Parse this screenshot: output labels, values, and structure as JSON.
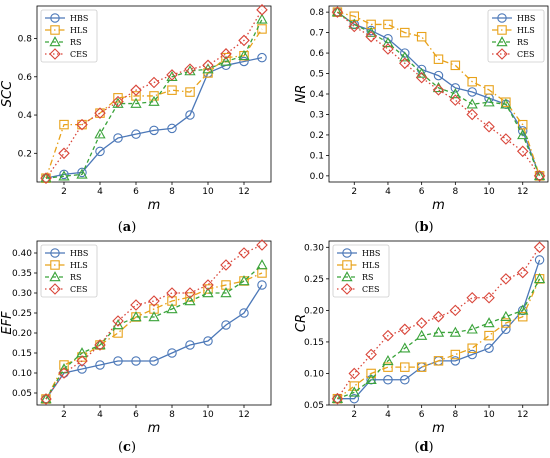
{
  "series_styles": [
    {
      "name": "HBS",
      "color": "#4c78b8",
      "marker": "circle",
      "dash": ""
    },
    {
      "name": "HLS",
      "color": "#e8a21a",
      "marker": "square",
      "dash": "6,3,1.5,3"
    },
    {
      "name": "RS",
      "color": "#3aa33a",
      "marker": "triangle",
      "dash": "4,3"
    },
    {
      "name": "CES",
      "color": "#d9463a",
      "marker": "diamond",
      "dash": "1.5,2.5"
    }
  ],
  "chart_data": [
    {
      "type": "line",
      "panel_label": "a",
      "xlabel": "m",
      "ylabel": "SCC",
      "x": [
        1,
        2,
        3,
        4,
        5,
        6,
        7,
        8,
        9,
        10,
        11,
        12,
        13
      ],
      "xlim": [
        0.5,
        13.5
      ],
      "ylim": [
        0.05,
        0.97
      ],
      "xticks": [
        2,
        4,
        6,
        8,
        10,
        12
      ],
      "yticks": [
        0.2,
        0.4,
        0.6,
        0.8
      ],
      "ytick_labels": [
        "0.2",
        "0.4",
        "0.6",
        "0.8"
      ],
      "legend": "top-left",
      "series": [
        {
          "name": "HBS",
          "values": [
            0.07,
            0.09,
            0.1,
            0.21,
            0.28,
            0.3,
            0.32,
            0.33,
            0.4,
            0.62,
            0.66,
            0.68,
            0.7
          ]
        },
        {
          "name": "HLS",
          "values": [
            0.07,
            0.35,
            0.35,
            0.41,
            0.49,
            0.5,
            0.5,
            0.53,
            0.52,
            0.62,
            0.7,
            0.71,
            0.85
          ]
        },
        {
          "name": "RS",
          "values": [
            0.07,
            0.08,
            0.09,
            0.3,
            0.46,
            0.46,
            0.47,
            0.6,
            0.63,
            0.64,
            0.68,
            0.71,
            0.9
          ]
        },
        {
          "name": "CES",
          "values": [
            0.07,
            0.2,
            0.35,
            0.41,
            0.47,
            0.53,
            0.57,
            0.61,
            0.64,
            0.66,
            0.72,
            0.79,
            0.95
          ]
        }
      ]
    },
    {
      "type": "line",
      "panel_label": "b",
      "xlabel": "m",
      "ylabel": "NR",
      "x": [
        1,
        2,
        3,
        4,
        5,
        6,
        7,
        8,
        9,
        10,
        11,
        12,
        13
      ],
      "xlim": [
        0.5,
        13.5
      ],
      "ylim": [
        -0.03,
        0.83
      ],
      "xticks": [
        2,
        4,
        6,
        8,
        10,
        12
      ],
      "yticks": [
        0.0,
        0.1,
        0.2,
        0.3,
        0.4,
        0.5,
        0.6,
        0.7,
        0.8
      ],
      "ytick_labels": [
        "0.0",
        "0.1",
        "0.2",
        "0.3",
        "0.4",
        "0.5",
        "0.6",
        "0.7",
        "0.8"
      ],
      "legend": "top-right",
      "series": [
        {
          "name": "HBS",
          "values": [
            0.8,
            0.74,
            0.71,
            0.67,
            0.6,
            0.52,
            0.49,
            0.43,
            0.41,
            0.38,
            0.35,
            0.22,
            0.0
          ]
        },
        {
          "name": "HLS",
          "values": [
            0.8,
            0.78,
            0.74,
            0.74,
            0.7,
            0.68,
            0.57,
            0.54,
            0.46,
            0.42,
            0.36,
            0.25,
            0.0
          ]
        },
        {
          "name": "RS",
          "values": [
            0.8,
            0.74,
            0.7,
            0.65,
            0.58,
            0.5,
            0.43,
            0.4,
            0.35,
            0.36,
            0.35,
            0.2,
            0.0
          ]
        },
        {
          "name": "CES",
          "values": [
            0.8,
            0.73,
            0.68,
            0.62,
            0.55,
            0.48,
            0.42,
            0.37,
            0.3,
            0.24,
            0.18,
            0.12,
            0.0
          ]
        }
      ]
    },
    {
      "type": "line",
      "panel_label": "c",
      "xlabel": "m",
      "ylabel": "EFF",
      "x": [
        1,
        2,
        3,
        4,
        5,
        6,
        7,
        8,
        9,
        10,
        11,
        12,
        13
      ],
      "xlim": [
        0.5,
        13.5
      ],
      "ylim": [
        0.02,
        0.43
      ],
      "xticks": [
        2,
        4,
        6,
        8,
        10,
        12
      ],
      "yticks": [
        0.05,
        0.1,
        0.15,
        0.2,
        0.25,
        0.3,
        0.35,
        0.4
      ],
      "ytick_labels": [
        "0.05",
        "0.10",
        "0.15",
        "0.20",
        "0.25",
        "0.30",
        "0.35",
        "0.40"
      ],
      "legend": "top-left",
      "series": [
        {
          "name": "HBS",
          "values": [
            0.035,
            0.1,
            0.11,
            0.12,
            0.13,
            0.13,
            0.13,
            0.15,
            0.17,
            0.18,
            0.22,
            0.25,
            0.32
          ]
        },
        {
          "name": "HLS",
          "values": [
            0.035,
            0.12,
            0.14,
            0.17,
            0.2,
            0.24,
            0.26,
            0.28,
            0.29,
            0.31,
            0.32,
            0.33,
            0.35
          ]
        },
        {
          "name": "RS",
          "values": [
            0.035,
            0.11,
            0.15,
            0.17,
            0.22,
            0.24,
            0.24,
            0.26,
            0.28,
            0.3,
            0.3,
            0.33,
            0.37
          ]
        },
        {
          "name": "CES",
          "values": [
            0.035,
            0.1,
            0.13,
            0.17,
            0.23,
            0.27,
            0.28,
            0.3,
            0.3,
            0.32,
            0.37,
            0.4,
            0.42
          ]
        }
      ]
    },
    {
      "type": "line",
      "panel_label": "d",
      "xlabel": "m",
      "ylabel": "CR",
      "x": [
        1,
        2,
        3,
        4,
        5,
        6,
        7,
        8,
        9,
        10,
        11,
        12,
        13
      ],
      "xlim": [
        0.5,
        13.5
      ],
      "ylim": [
        0.05,
        0.31
      ],
      "xticks": [
        2,
        4,
        6,
        8,
        10,
        12
      ],
      "yticks": [
        0.05,
        0.1,
        0.15,
        0.2,
        0.25,
        0.3
      ],
      "ytick_labels": [
        "0.05",
        "0.10",
        "0.15",
        "0.20",
        "0.25",
        "0.30"
      ],
      "legend": "top-left",
      "series": [
        {
          "name": "HBS",
          "values": [
            0.06,
            0.06,
            0.09,
            0.09,
            0.09,
            0.11,
            0.12,
            0.12,
            0.13,
            0.14,
            0.17,
            0.2,
            0.28
          ]
        },
        {
          "name": "HLS",
          "values": [
            0.06,
            0.08,
            0.1,
            0.11,
            0.11,
            0.11,
            0.12,
            0.13,
            0.14,
            0.16,
            0.18,
            0.19,
            0.25
          ]
        },
        {
          "name": "RS",
          "values": [
            0.06,
            0.07,
            0.09,
            0.12,
            0.14,
            0.16,
            0.165,
            0.165,
            0.17,
            0.18,
            0.19,
            0.2,
            0.25
          ]
        },
        {
          "name": "CES",
          "values": [
            0.06,
            0.1,
            0.13,
            0.16,
            0.17,
            0.18,
            0.19,
            0.2,
            0.22,
            0.22,
            0.25,
            0.26,
            0.3
          ]
        }
      ]
    }
  ]
}
